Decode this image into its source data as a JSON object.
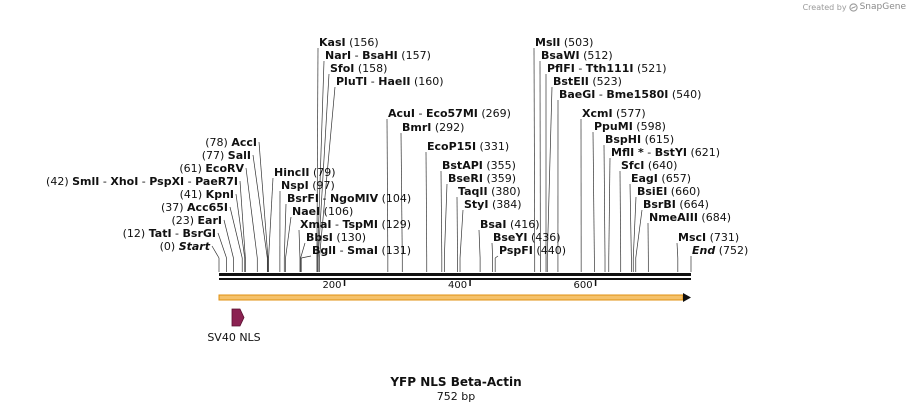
{
  "credit": {
    "prefix": "Created by",
    "brand": "SnapGene"
  },
  "plasmid": {
    "name": "YFP NLS Beta-Actin",
    "length_label": "752 bp",
    "length": 752
  },
  "axis_ticks": [
    "200",
    "400",
    "600"
  ],
  "feature": {
    "label": "SV40 NLS",
    "color": "#8b2252"
  },
  "orf_color": "#f0a020",
  "sites_left": [
    {
      "pos": "(0)",
      "names": [
        "Start"
      ],
      "italic": true
    },
    {
      "pos": "(12)",
      "names": [
        "TatI",
        "BsrGI"
      ]
    },
    {
      "pos": "(23)",
      "names": [
        "EarI"
      ]
    },
    {
      "pos": "(37)",
      "names": [
        "Acc65I"
      ]
    },
    {
      "pos": "(41)",
      "names": [
        "KpnI"
      ]
    },
    {
      "pos": "(42)",
      "names": [
        "SmlI",
        "XhoI",
        "PspXI",
        "PaeR7I"
      ]
    },
    {
      "pos": "(61)",
      "names": [
        "EcoRV"
      ]
    },
    {
      "pos": "(77)",
      "names": [
        "SalI"
      ]
    },
    {
      "pos": "(78)",
      "names": [
        "AccI"
      ]
    }
  ],
  "sites_right": [
    {
      "names": [
        "KasI"
      ],
      "pos": "(156)"
    },
    {
      "names": [
        "NarI",
        "BsaHI"
      ],
      "pos": "(157)"
    },
    {
      "names": [
        "SfoI"
      ],
      "pos": "(158)"
    },
    {
      "names": [
        "PluTI",
        "HaeII"
      ],
      "pos": "(160)"
    },
    {
      "names": [
        "HincII"
      ],
      "pos": "(79)"
    },
    {
      "names": [
        "NspI"
      ],
      "pos": "(97)"
    },
    {
      "names": [
        "BsrFI",
        "NgoMIV"
      ],
      "pos": "(104)"
    },
    {
      "names": [
        "NaeI"
      ],
      "pos": "(106)"
    },
    {
      "names": [
        "XmaI",
        "TspMI"
      ],
      "pos": "(129)"
    },
    {
      "names": [
        "BbsI"
      ],
      "pos": "(130)"
    },
    {
      "names": [
        "BglI",
        "SmaI"
      ],
      "pos": "(131)"
    },
    {
      "names": [
        "AcuI",
        "Eco57MI"
      ],
      "pos": "(269)"
    },
    {
      "names": [
        "BmrI"
      ],
      "pos": "(292)"
    },
    {
      "names": [
        "EcoP15I"
      ],
      "pos": "(331)"
    },
    {
      "names": [
        "BstAPI"
      ],
      "pos": "(355)"
    },
    {
      "names": [
        "BseRI"
      ],
      "pos": "(359)"
    },
    {
      "names": [
        "TaqII"
      ],
      "pos": "(380)"
    },
    {
      "names": [
        "StyI"
      ],
      "pos": "(384)"
    },
    {
      "names": [
        "BsaI"
      ],
      "pos": "(416)"
    },
    {
      "names": [
        "BseYI"
      ],
      "pos": "(436)"
    },
    {
      "names": [
        "PspFI"
      ],
      "pos": "(440)"
    },
    {
      "names": [
        "MslI"
      ],
      "pos": "(503)"
    },
    {
      "names": [
        "BsaWI"
      ],
      "pos": "(512)"
    },
    {
      "names": [
        "PflFI",
        "Tth111I"
      ],
      "pos": "(521)"
    },
    {
      "names": [
        "BstEII"
      ],
      "pos": "(523)"
    },
    {
      "names": [
        "BaeGI",
        "Bme1580I"
      ],
      "pos": "(540)"
    },
    {
      "names": [
        "XcmI"
      ],
      "pos": "(577)"
    },
    {
      "names": [
        "PpuMI"
      ],
      "pos": "(598)"
    },
    {
      "names": [
        "BspHI"
      ],
      "pos": "(615)"
    },
    {
      "names": [
        "MflI *",
        "BstYI"
      ],
      "pos": "(621)"
    },
    {
      "names": [
        "SfcI"
      ],
      "pos": "(640)"
    },
    {
      "names": [
        "EagI"
      ],
      "pos": "(657)"
    },
    {
      "names": [
        "BsiEI"
      ],
      "pos": "(660)"
    },
    {
      "names": [
        "BsrBI"
      ],
      "pos": "(664)"
    },
    {
      "names": [
        "NmeAIII"
      ],
      "pos": "(684)"
    },
    {
      "names": [
        "MscI"
      ],
      "pos": "(731)"
    },
    {
      "names": [
        "End"
      ],
      "pos": "(752)",
      "italic": true
    }
  ]
}
